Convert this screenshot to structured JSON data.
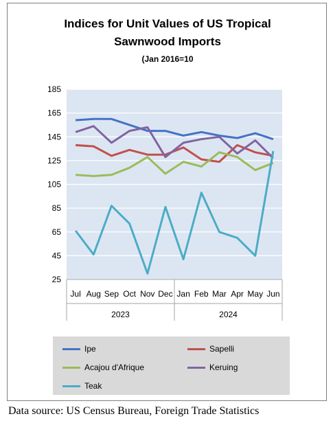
{
  "chart_data": {
    "type": "line",
    "title": "Indices for Unit Values of US Tropical Sawnwood Imports",
    "title_line1": "Indices for Unit Values of US Tropical",
    "title_line2": "Sawnwood Imports",
    "subtitle": "(Jan 2016=10",
    "categories": [
      "Jul",
      "Aug",
      "Sep",
      "Oct",
      "Nov",
      "Dec",
      "Jan",
      "Feb",
      "Mar",
      "Apr",
      "May",
      "Jun"
    ],
    "year_groups": [
      {
        "label": "2023",
        "count": 6
      },
      {
        "label": "2024",
        "count": 6
      }
    ],
    "ylim": [
      25,
      185
    ],
    "yticks": [
      25,
      45,
      65,
      85,
      105,
      125,
      145,
      165,
      185
    ],
    "grid": true,
    "legend_position": "bottom",
    "series": [
      {
        "name": "Ipe",
        "color": "#4472c4",
        "values": [
          159,
          160,
          160,
          155,
          150,
          150,
          146,
          149,
          146,
          144,
          148,
          143
        ]
      },
      {
        "name": "Sapelli",
        "color": "#c0504d",
        "values": [
          138,
          137,
          129,
          134,
          130,
          130,
          136,
          126,
          124,
          138,
          132,
          129
        ]
      },
      {
        "name": "Acajou d'Afrique",
        "color": "#9bbb59",
        "values": [
          113,
          112,
          113,
          119,
          128,
          114,
          124,
          120,
          132,
          128,
          117,
          123
        ]
      },
      {
        "name": "Keruing",
        "color": "#8064a2",
        "values": [
          149,
          154,
          140,
          150,
          153,
          128,
          140,
          143,
          145,
          131,
          142,
          127
        ]
      },
      {
        "name": "Teak",
        "color": "#4bacc6",
        "values": [
          66,
          46,
          87,
          72,
          30,
          86,
          42,
          98,
          65,
          60,
          45,
          133
        ]
      }
    ]
  },
  "source": "Data source: US Census Bureau, Foreign Trade Statistics"
}
